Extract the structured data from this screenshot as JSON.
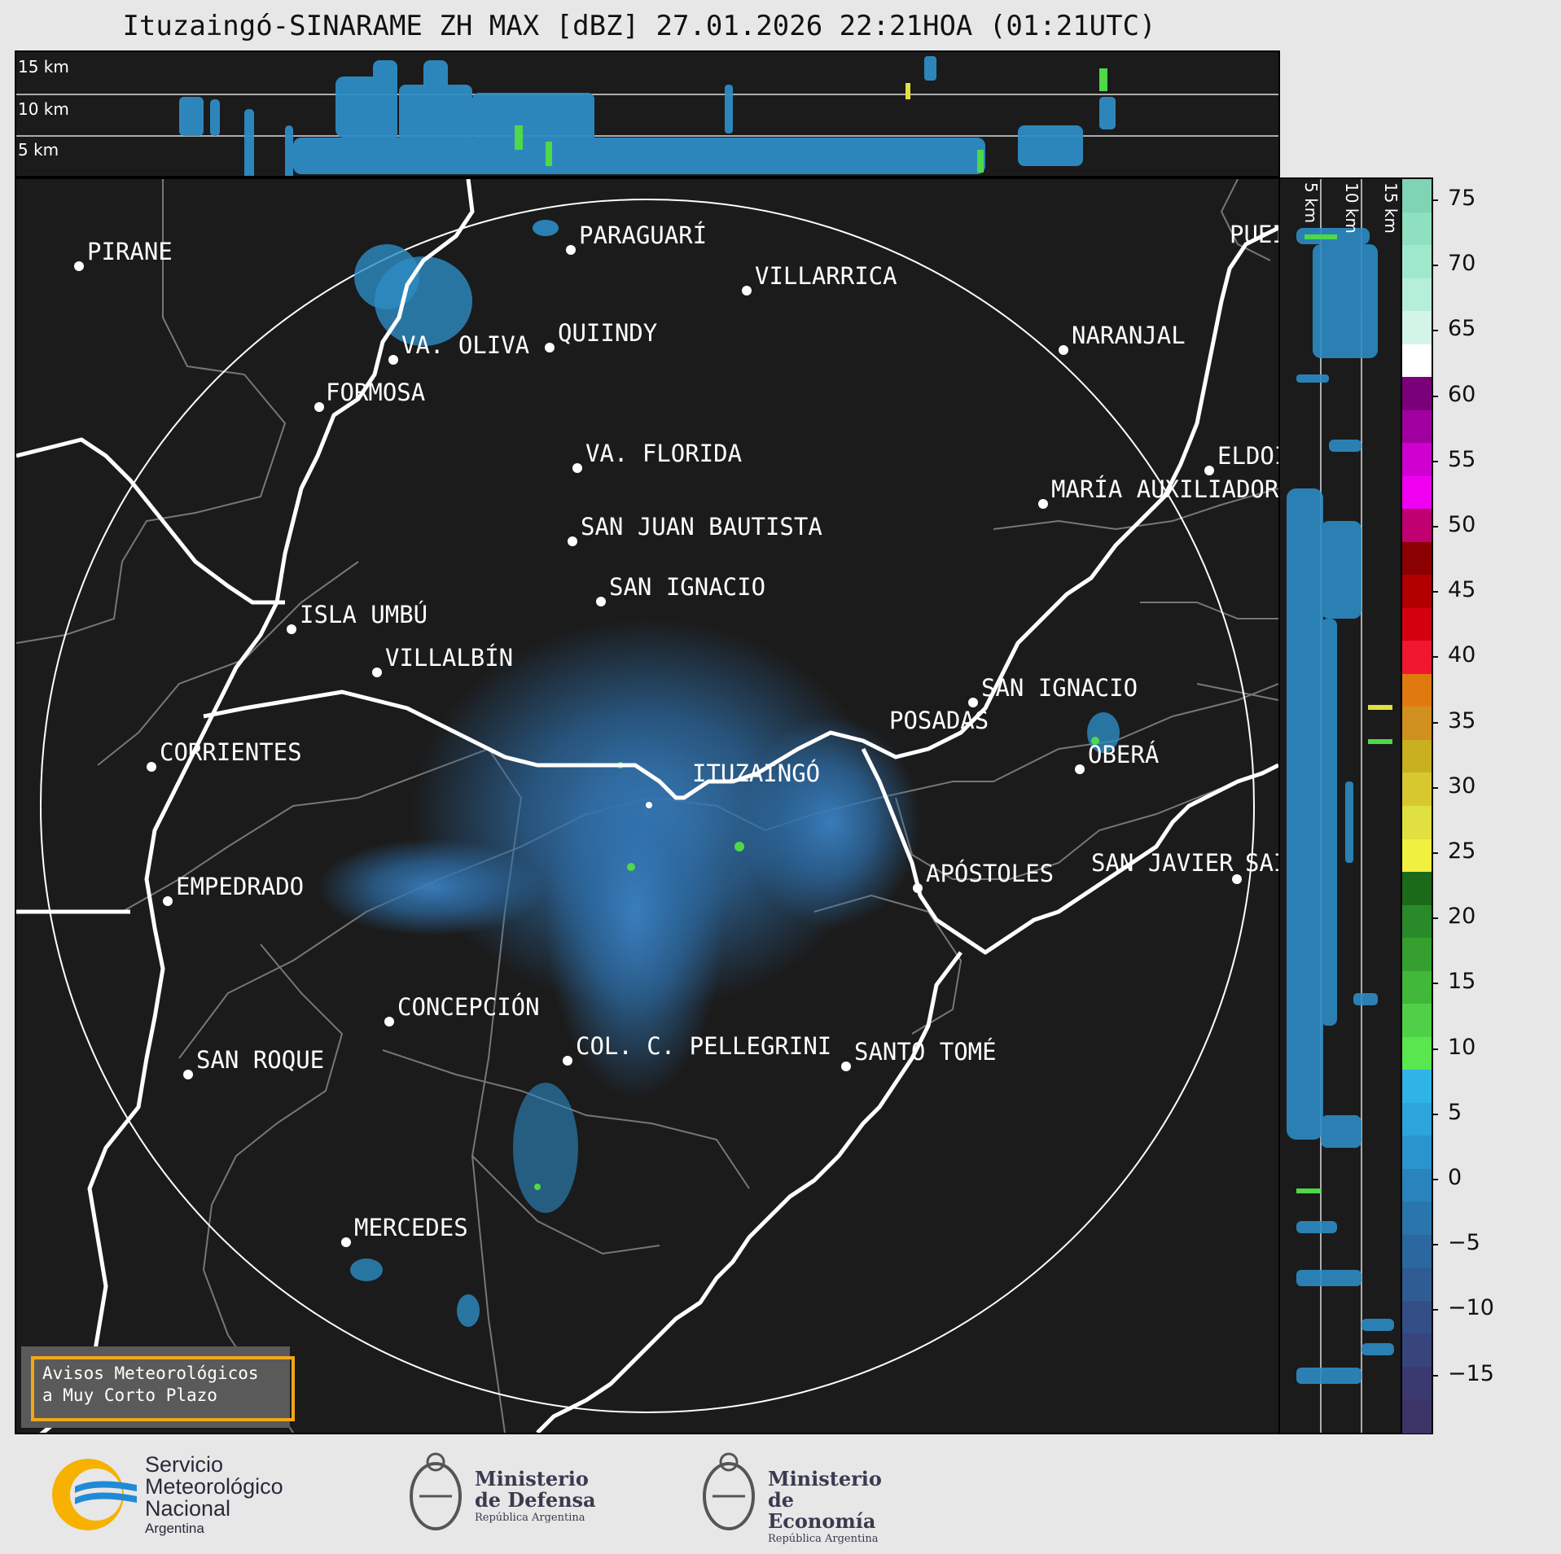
{
  "title": "Ituzaingó-SINARAME ZH MAX [dBZ] 27.01.2026 22:21HOA (01:21UTC)",
  "top_panel": {
    "height_labels": [
      "15 km",
      "10 km",
      "5 km"
    ]
  },
  "side_panel": {
    "height_labels": [
      "5 km",
      "10 km",
      "15 km"
    ]
  },
  "colorbar": {
    "ticks": [
      "75",
      "70",
      "65",
      "60",
      "55",
      "50",
      "45",
      "40",
      "35",
      "30",
      "25",
      "20",
      "15",
      "10",
      "5",
      "0",
      "−5",
      "−10",
      "−15"
    ],
    "colors": [
      "#7fd4b4",
      "#8ee0c0",
      "#a0e8cc",
      "#b6efd9",
      "#d2f5e8",
      "#ffffff",
      "#7a007a",
      "#a000a0",
      "#d000d0",
      "#f000f0",
      "#c00070",
      "#8b0000",
      "#b00000",
      "#d40010",
      "#f01830",
      "#e07a10",
      "#d09020",
      "#c8b020",
      "#d8c830",
      "#e0e040",
      "#f0f040",
      "#1a6a1a",
      "#2a8a2a",
      "#35a030",
      "#42b83a",
      "#50d048",
      "#5ae64e",
      "#30b4e8",
      "#2ea4dc",
      "#2a94cc",
      "#2a84bc",
      "#2a76ac",
      "#2c68a0",
      "#305c94",
      "#344e88",
      "#38447c",
      "#3a3a70",
      "#3c3466"
    ]
  },
  "cities": [
    {
      "name": "PIRANE"
    },
    {
      "name": "PARAGUARÍ"
    },
    {
      "name": "VILLARRICA"
    },
    {
      "name": "QUIINDY"
    },
    {
      "name": "VA. OLIVA"
    },
    {
      "name": "FORMOSA"
    },
    {
      "name": "NARANJAL"
    },
    {
      "name": "PUEI"
    },
    {
      "name": "VA. FLORIDA"
    },
    {
      "name": "ELDOI"
    },
    {
      "name": "MARÍA AUXILIADOR"
    },
    {
      "name": "SAN JUAN BAUTISTA"
    },
    {
      "name": "SAN IGNACIO"
    },
    {
      "name": "ISLA UMBÚ"
    },
    {
      "name": "VILLALBÍN"
    },
    {
      "name": "SAN IGNACIO"
    },
    {
      "name": "POSADAS"
    },
    {
      "name": "CORRIENTES"
    },
    {
      "name": "ITUZAINGÓ"
    },
    {
      "name": "OBERÁ"
    },
    {
      "name": "APÓSTOLES"
    },
    {
      "name": "SAN JAVIER"
    },
    {
      "name": "SAI"
    },
    {
      "name": "EMPEDRADO"
    },
    {
      "name": "CONCEPCIÓN"
    },
    {
      "name": "COL. C. PELLEGRINI"
    },
    {
      "name": "SANTO TOMÉ"
    },
    {
      "name": "SAN ROQUE"
    },
    {
      "name": "MERCEDES"
    }
  ],
  "warning_box": {
    "line1": "Avisos Meteorológicos",
    "line2": "a Muy Corto Plazo"
  },
  "logos": {
    "smn": {
      "line1": "Servicio",
      "line2": "Meteorológico",
      "line3": "Nacional",
      "line4": "Argentina"
    },
    "defensa": {
      "line1": "Ministerio",
      "line2": "de Defensa",
      "line3": "República Argentina"
    },
    "economia": {
      "line1": "Ministerio",
      "line2": "de Economía",
      "line3": "República Argentina"
    }
  }
}
